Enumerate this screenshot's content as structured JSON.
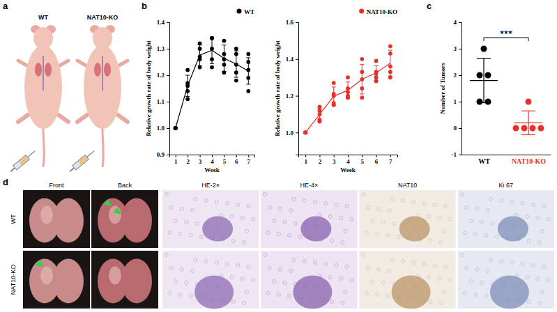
{
  "chart_data": [
    {
      "type": "line",
      "x_label": "Week",
      "y_label": "Relative growth rate of body weight",
      "x": [
        1,
        2,
        3,
        4,
        5,
        6,
        7
      ],
      "xlim": [
        0.5,
        7.5
      ],
      "xticks": [
        1,
        2,
        3,
        4,
        5,
        6,
        7
      ],
      "ylim": [
        0.9,
        1.4
      ],
      "yticks": [
        0.9,
        {
          "value": 1,
          "label": "1.0"
        },
        1.1,
        1.2,
        1.3,
        1.4
      ],
      "legend": "upper right",
      "series": [
        {
          "name": "WT",
          "color": "#000000",
          "marker": "circle",
          "line_style": "solid",
          "values": [
            1.0,
            1.16,
            1.276,
            1.294,
            1.264,
            1.242,
            1.216
          ],
          "error": [
            0,
            0.04,
            0.04,
            0.05,
            0.05,
            0.05,
            0.05
          ],
          "points": [
            [
              1,
              1,
              1,
              1,
              1
            ],
            [
              1.22,
              1.17,
              1.16,
              1.14,
              1.11
            ],
            [
              1.32,
              1.3,
              1.27,
              1.26,
              1.23
            ],
            [
              1.34,
              1.34,
              1.3,
              1.26,
              1.23
            ],
            [
              1.33,
              1.28,
              1.26,
              1.24,
              1.21
            ],
            [
              1.3,
              1.28,
              1.24,
              1.21,
              1.18
            ],
            [
              1.28,
              1.25,
              1.22,
              1.19,
              1.14
            ]
          ]
        }
      ]
    },
    {
      "type": "line",
      "x_label": "Week",
      "y_label": "Relative growth rate of body weight",
      "x": [
        1,
        2,
        3,
        4,
        5,
        6,
        7
      ],
      "xlim": [
        0.5,
        7.5
      ],
      "xticks": [
        1,
        2,
        3,
        4,
        5,
        6,
        7
      ],
      "ylim": [
        0.88,
        1.6
      ],
      "yticks": [
        {
          "value": 1,
          "label": "1.0"
        },
        1.2,
        1.4,
        1.6
      ],
      "legend": "upper right",
      "series": [
        {
          "name": "NAT10-KO",
          "color": "#e8302a",
          "marker": "circle",
          "line_style": "solid",
          "values": [
            1.0,
            1.098,
            1.198,
            1.23,
            1.29,
            1.324,
            1.378
          ],
          "error": [
            0,
            0.035,
            0.05,
            0.045,
            0.08,
            0.04,
            0.07
          ],
          "points": [
            [
              1,
              1,
              1,
              1,
              1
            ],
            [
              1.14,
              1.12,
              1.1,
              1.07,
              1.06
            ],
            [
              1.27,
              1.21,
              1.2,
              1.16,
              1.15
            ],
            [
              1.3,
              1.24,
              1.22,
              1.2,
              1.19
            ],
            [
              1.4,
              1.33,
              1.29,
              1.24,
              1.19
            ],
            [
              1.39,
              1.33,
              1.32,
              1.3,
              1.28
            ],
            [
              1.47,
              1.43,
              1.36,
              1.33,
              1.3
            ]
          ]
        }
      ]
    },
    {
      "type": "dot_plot",
      "y_label": "Number of Tumors",
      "categories": [
        "WT",
        "NAT10-KO"
      ],
      "colors": [
        "#000000",
        "#e8302a"
      ],
      "values": [
        [
          3,
          2,
          2,
          1,
          1
        ],
        [
          1,
          0,
          0,
          0,
          0
        ]
      ],
      "mean": [
        1.8,
        0.2
      ],
      "sd": [
        0.84,
        0.45
      ],
      "ylim": [
        -1,
        4
      ],
      "yticks": [
        -1,
        0,
        1,
        2,
        3,
        4
      ],
      "annotation": "***"
    }
  ],
  "figure": {
    "panel_labels": [
      "a",
      "b",
      "c",
      "d"
    ],
    "panel_a": {
      "groups": [
        "WT",
        "NAT10-KO"
      ]
    },
    "panel_d": {
      "columns": [
        "Front",
        "Back",
        "HE-2×",
        "HE-4×",
        "NAT10",
        "Ki 67"
      ],
      "rows": [
        "WT",
        "NAT10-KO"
      ]
    }
  }
}
